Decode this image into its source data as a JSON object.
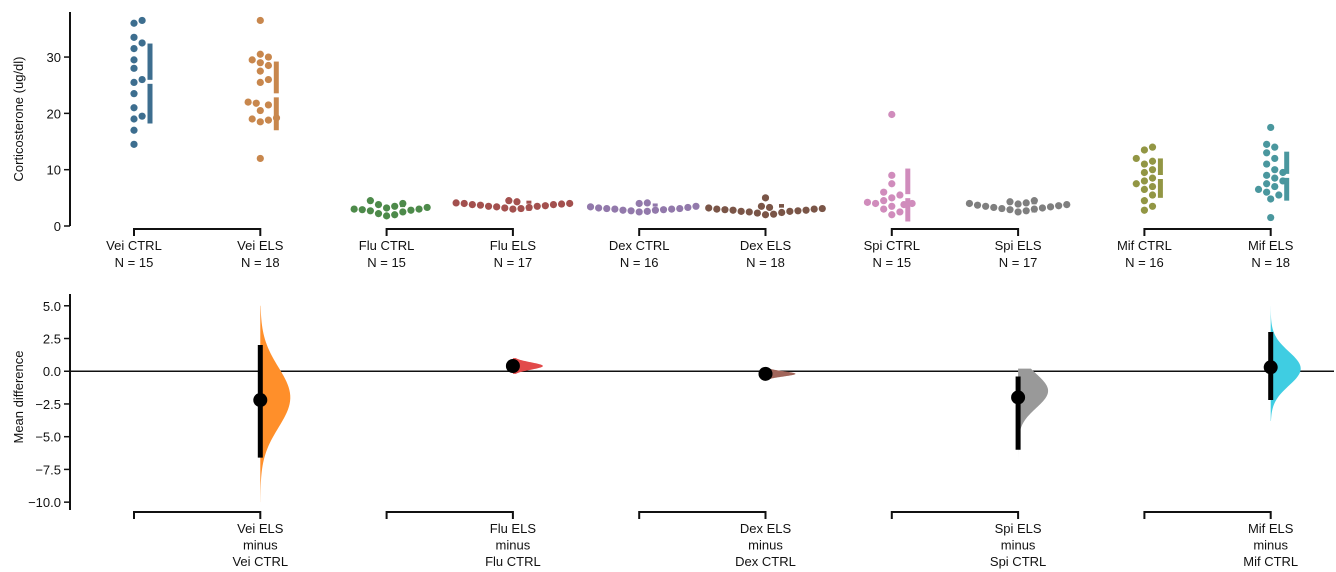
{
  "chart_data": {
    "type": "scatter",
    "top": {
      "ylabel": "Corticosterone (ug/dl)",
      "ylim": [
        0,
        38
      ],
      "yticks": [
        0,
        10,
        20,
        30
      ],
      "groups": [
        {
          "label": "Vei CTRL",
          "n_label": "N = 15",
          "color": "#3d6e8f",
          "values": [
            14.5,
            17.0,
            19.0,
            19.5,
            21.0,
            23.5,
            25.5,
            26.0,
            28.0,
            29.5,
            31.5,
            32.5,
            33.5,
            36.0,
            36.5
          ],
          "mean": 25.6,
          "sd_low": 18.2,
          "sd_high": 32.4
        },
        {
          "label": "Vei ELS",
          "n_label": "N = 18",
          "color": "#c8874d",
          "values": [
            12.0,
            18.5,
            18.8,
            19.0,
            19.2,
            20.5,
            21.5,
            21.8,
            22.0,
            25.5,
            26.0,
            27.5,
            28.5,
            29.0,
            29.5,
            30.0,
            30.5,
            36.5
          ],
          "mean": 23.2,
          "sd_low": 17.0,
          "sd_high": 29.2
        },
        {
          "label": "Flu CTRL",
          "n_label": "N = 15",
          "color": "#4d8a4a",
          "values": [
            1.8,
            2.0,
            2.2,
            2.5,
            2.7,
            2.8,
            2.9,
            3.0,
            3.0,
            3.2,
            3.3,
            3.5,
            3.8,
            4.0,
            4.5
          ],
          "mean": 3.0,
          "sd_low": 2.2,
          "sd_high": 4.0
        },
        {
          "label": "Flu ELS",
          "n_label": "N = 17",
          "color": "#a3504e",
          "values": [
            3.0,
            3.1,
            3.2,
            3.3,
            3.4,
            3.5,
            3.5,
            3.6,
            3.7,
            3.8,
            3.8,
            3.9,
            4.0,
            4.0,
            4.1,
            4.3,
            4.5
          ],
          "mean": 3.6,
          "sd_low": 2.7,
          "sd_high": 4.5
        },
        {
          "label": "Dex CTRL",
          "n_label": "N = 16",
          "color": "#9279ab",
          "values": [
            2.5,
            2.6,
            2.7,
            2.8,
            2.8,
            2.9,
            3.0,
            3.0,
            3.1,
            3.1,
            3.2,
            3.3,
            3.4,
            3.5,
            4.0,
            4.1
          ],
          "mean": 3.1,
          "sd_low": 2.3,
          "sd_high": 4.0
        },
        {
          "label": "Dex ELS",
          "n_label": "N = 18",
          "color": "#7a5547",
          "values": [
            2.0,
            2.1,
            2.3,
            2.4,
            2.5,
            2.6,
            2.6,
            2.7,
            2.8,
            2.8,
            2.9,
            3.0,
            3.0,
            3.1,
            3.2,
            3.3,
            3.5,
            5.0
          ],
          "mean": 2.9,
          "sd_low": 1.9,
          "sd_high": 3.9
        },
        {
          "label": "Spi CTRL",
          "n_label": "N = 15",
          "color": "#d08cbc",
          "values": [
            2.0,
            2.5,
            3.0,
            3.5,
            3.8,
            4.0,
            4.0,
            4.2,
            4.5,
            5.0,
            5.5,
            6.0,
            7.5,
            9.0,
            19.8
          ],
          "mean": 5.3,
          "sd_low": 0.8,
          "sd_high": 10.2
        },
        {
          "label": "Spi ELS",
          "n_label": "N = 17",
          "color": "#7f7f7f",
          "values": [
            2.5,
            2.7,
            2.9,
            3.0,
            3.1,
            3.2,
            3.3,
            3.4,
            3.5,
            3.6,
            3.7,
            3.8,
            3.9,
            4.0,
            4.1,
            4.3,
            4.5
          ],
          "mean": 3.5,
          "sd_low": 2.4,
          "sd_high": 4.6
        },
        {
          "label": "Mif CTRL",
          "n_label": "N = 16",
          "color": "#929644",
          "values": [
            2.8,
            3.5,
            4.5,
            5.5,
            6.5,
            7.0,
            7.5,
            8.0,
            8.5,
            9.5,
            10.0,
            11.0,
            11.5,
            12.0,
            13.5,
            14.0
          ],
          "mean": 8.7,
          "sd_low": 5.0,
          "sd_high": 12.0
        },
        {
          "label": "Mif ELS",
          "n_label": "N = 18",
          "color": "#4a979e",
          "values": [
            1.5,
            4.8,
            5.5,
            6.0,
            6.5,
            7.0,
            7.5,
            8.0,
            8.5,
            9.0,
            9.5,
            10.0,
            11.0,
            12.0,
            13.0,
            14.0,
            14.5,
            17.5
          ],
          "mean": 8.9,
          "sd_low": 4.5,
          "sd_high": 13.2
        }
      ]
    },
    "bottom": {
      "ylabel": "Mean difference",
      "ylim": [
        -10.6,
        5.9
      ],
      "yticks": [
        5.0,
        2.5,
        0.0,
        -2.5,
        -5.0,
        -7.5,
        -10.0
      ],
      "ytick_labels": [
        "5.0",
        "2.5",
        "0.0",
        "−2.5",
        "−5.0",
        "−7.5",
        "−10.0"
      ],
      "comparisons": [
        {
          "label_lines": [
            "Vei ELS",
            "minus",
            "Vei CTRL"
          ],
          "color": "#ff8f2a",
          "mean_diff": -2.2,
          "ci": [
            -6.6,
            2.0
          ],
          "dist_mode": -2.0,
          "dist_sd": 2.3,
          "dist_range": [
            -10.0,
            5.0
          ]
        },
        {
          "label_lines": [
            "Flu ELS",
            "minus",
            "Flu CTRL"
          ],
          "color": "#e24a4a",
          "mean_diff": 0.4,
          "ci": [
            -0.1,
            0.9
          ],
          "dist_mode": 0.4,
          "dist_sd": 0.28,
          "dist_range": [
            -0.2,
            1.0
          ]
        },
        {
          "label_lines": [
            "Dex ELS",
            "minus",
            "Dex CTRL"
          ],
          "color": "#a1655a",
          "mean_diff": -0.2,
          "ci": [
            -0.6,
            0.2
          ],
          "dist_mode": -0.2,
          "dist_sd": 0.2,
          "dist_range": [
            -0.6,
            0.3
          ]
        },
        {
          "label_lines": [
            "Spi ELS",
            "minus",
            "Spi CTRL"
          ],
          "color": "#999999",
          "mean_diff": -2.0,
          "ci": [
            -6.0,
            -0.4
          ],
          "dist_mode": -1.5,
          "dist_sd": 1.3,
          "dist_range": [
            -6.8,
            0.2
          ]
        },
        {
          "label_lines": [
            "Mif ELS",
            "minus",
            "Mif CTRL"
          ],
          "color": "#3fcde2",
          "mean_diff": 0.3,
          "ci": [
            -2.2,
            3.0
          ],
          "dist_mode": 0.2,
          "dist_sd": 1.3,
          "dist_range": [
            -3.8,
            5.0
          ]
        }
      ]
    }
  }
}
